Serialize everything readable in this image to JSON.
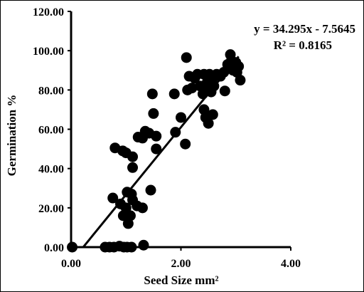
{
  "chart_data": {
    "type": "scatter",
    "title": "",
    "xlabel": "Seed Size mm²",
    "ylabel": "Germination %",
    "xlim": [
      0,
      4
    ],
    "ylim": [
      0,
      120
    ],
    "x_ticks": [
      "0.00",
      "2.00",
      "4.00"
    ],
    "y_ticks": [
      "0.00",
      "20.00",
      "40.00",
      "60.00",
      "80.00",
      "100.00",
      "120.00"
    ],
    "grid": false,
    "legend": "none",
    "series": [
      {
        "points": [
          [
            0.02,
            0.0
          ],
          [
            0.62,
            0.0
          ],
          [
            0.7,
            0.0
          ],
          [
            0.78,
            0.0
          ],
          [
            0.88,
            0.5
          ],
          [
            0.96,
            0.0
          ],
          [
            1.02,
            0.0
          ],
          [
            1.1,
            0.0
          ],
          [
            1.32,
            1.0
          ],
          [
            0.76,
            25.0
          ],
          [
            0.9,
            22.0
          ],
          [
            0.95,
            16.0
          ],
          [
            1.0,
            20.0
          ],
          [
            1.04,
            12.0
          ],
          [
            1.08,
            16.0
          ],
          [
            1.12,
            24.0
          ],
          [
            1.2,
            21.0
          ],
          [
            1.3,
            20.0
          ],
          [
            1.02,
            28.0
          ],
          [
            1.1,
            27.0
          ],
          [
            0.8,
            50.5
          ],
          [
            0.94,
            49.0
          ],
          [
            1.0,
            48.0
          ],
          [
            1.12,
            46.0
          ],
          [
            1.12,
            40.5
          ],
          [
            1.22,
            56.0
          ],
          [
            1.3,
            55.5
          ],
          [
            1.35,
            59.0
          ],
          [
            1.42,
            58.0
          ],
          [
            1.45,
            29.0
          ],
          [
            1.5,
            68.0
          ],
          [
            1.55,
            50.0
          ],
          [
            1.55,
            56.5
          ],
          [
            1.48,
            78.0
          ],
          [
            1.88,
            78.0
          ],
          [
            1.9,
            58.5
          ],
          [
            2.0,
            66.0
          ],
          [
            2.08,
            52.5
          ],
          [
            2.1,
            96.5
          ],
          [
            2.12,
            80.0
          ],
          [
            2.15,
            87.0
          ],
          [
            2.2,
            81.0
          ],
          [
            2.25,
            86.0
          ],
          [
            2.3,
            88.0
          ],
          [
            2.35,
            82.0
          ],
          [
            2.4,
            78.0
          ],
          [
            2.42,
            88.0
          ],
          [
            2.42,
            70.0
          ],
          [
            2.45,
            66.0
          ],
          [
            2.5,
            63.0
          ],
          [
            2.48,
            84.0
          ],
          [
            2.5,
            80.0
          ],
          [
            2.52,
            88.0
          ],
          [
            2.55,
            79.0
          ],
          [
            2.58,
            86.0
          ],
          [
            2.6,
            82.0
          ],
          [
            2.65,
            88.0
          ],
          [
            2.72,
            87.0
          ],
          [
            2.78,
            89.0
          ],
          [
            2.8,
            79.5
          ],
          [
            2.85,
            93.0
          ],
          [
            2.9,
            98.0
          ],
          [
            2.92,
            95.0
          ],
          [
            2.95,
            90.0
          ],
          [
            3.0,
            94.0
          ],
          [
            3.02,
            89.0
          ],
          [
            3.05,
            92.0
          ],
          [
            3.08,
            85.0
          ],
          [
            2.58,
            67.5
          ]
        ]
      }
    ],
    "trendline": {
      "slope": 34.295,
      "intercept": -7.5645,
      "x_range": [
        0.22,
        3.05
      ],
      "equation": "y = 34.295x - 7.5645",
      "r_squared": "R² = 0.8165"
    }
  }
}
